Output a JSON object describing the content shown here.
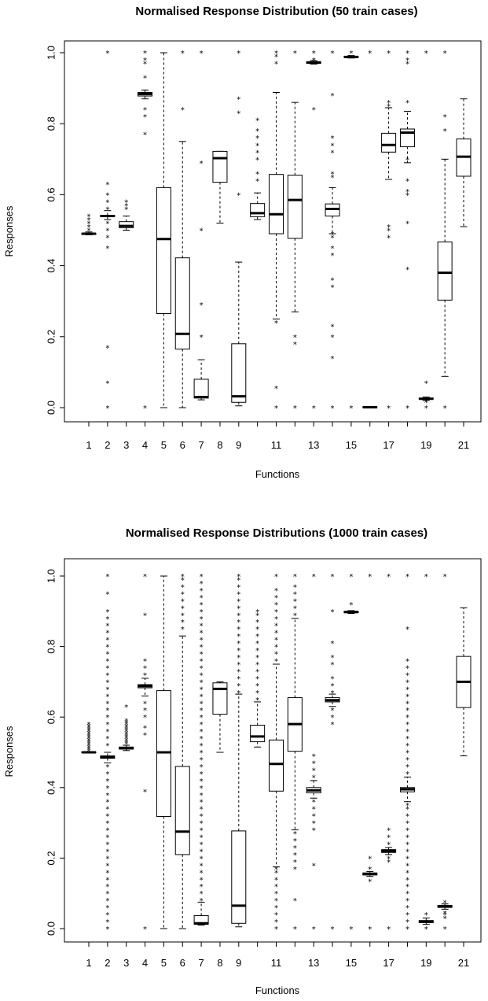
{
  "charts": [
    {
      "type": "box",
      "title": "Normalised Response Distribution (50 train cases)",
      "xlabel": "Functions",
      "ylabel": "Responses",
      "ylim": [
        0,
        1
      ],
      "y_ticks": [
        "0.0",
        "0.2",
        "0.4",
        "0.6",
        "0.8",
        "1.0"
      ],
      "x_tick_labels": [
        {
          "pos": 1,
          "label": "1"
        },
        {
          "pos": 2,
          "label": "2"
        },
        {
          "pos": 3,
          "label": "3"
        },
        {
          "pos": 4,
          "label": "4"
        },
        {
          "pos": 5,
          "label": "5"
        },
        {
          "pos": 6,
          "label": "6"
        },
        {
          "pos": 7,
          "label": "7"
        },
        {
          "pos": 8,
          "label": "8"
        },
        {
          "pos": 9,
          "label": "9"
        },
        {
          "pos": 11,
          "label": "11"
        },
        {
          "pos": 13,
          "label": "13"
        },
        {
          "pos": 15,
          "label": "15"
        },
        {
          "pos": 17,
          "label": "17"
        },
        {
          "pos": 19,
          "label": "19"
        },
        {
          "pos": 21,
          "label": "21"
        }
      ],
      "boxes": [
        {
          "f": 1,
          "lo": 0.487,
          "q1": 0.488,
          "med": 0.49,
          "q3": 0.491,
          "hi": 0.495,
          "out": [
            0.5,
            0.51,
            0.52,
            0.53,
            0.54
          ]
        },
        {
          "f": 2,
          "lo": 0.53,
          "q1": 0.538,
          "med": 0.54,
          "q3": 0.542,
          "hi": 0.555,
          "out": [
            0.0,
            0.07,
            0.17,
            0.45,
            0.48,
            0.5,
            0.52,
            0.56,
            0.58,
            0.6,
            0.63,
            1.0
          ]
        },
        {
          "f": 3,
          "lo": 0.5,
          "q1": 0.507,
          "med": 0.512,
          "q3": 0.524,
          "hi": 0.54,
          "out": [
            0.56,
            0.57,
            0.58
          ]
        },
        {
          "f": 4,
          "lo": 0.87,
          "q1": 0.878,
          "med": 0.884,
          "q3": 0.888,
          "hi": 0.895,
          "out": [
            0.0,
            0.77,
            0.82,
            0.84,
            0.93,
            0.97,
            0.98,
            1.0
          ]
        },
        {
          "f": 5,
          "lo": 0.0,
          "q1": 0.265,
          "med": 0.475,
          "q3": 0.62,
          "hi": 1.0,
          "out": []
        },
        {
          "f": 6,
          "lo": 0.0,
          "q1": 0.165,
          "med": 0.208,
          "q3": 0.422,
          "hi": 0.75,
          "out": [
            0.84,
            1.0
          ]
        },
        {
          "f": 7,
          "lo": 0.022,
          "q1": 0.027,
          "med": 0.03,
          "q3": 0.08,
          "hi": 0.135,
          "out": [
            0.2,
            0.29,
            0.5,
            0.69,
            1.0
          ]
        },
        {
          "f": 8,
          "lo": 0.52,
          "q1": 0.635,
          "med": 0.703,
          "q3": 0.722,
          "hi": 0.722,
          "out": []
        },
        {
          "f": 9,
          "lo": 0.005,
          "q1": 0.015,
          "med": 0.032,
          "q3": 0.18,
          "hi": 0.41,
          "out": [
            0.6,
            0.83,
            0.87,
            1.0
          ]
        },
        {
          "f": 10,
          "lo": 0.53,
          "q1": 0.538,
          "med": 0.548,
          "q3": 0.575,
          "hi": 0.605,
          "out": [
            0.64,
            0.66,
            0.7,
            0.72,
            0.74,
            0.76,
            0.78,
            0.81
          ]
        },
        {
          "f": 11,
          "lo": 0.25,
          "q1": 0.49,
          "med": 0.545,
          "q3": 0.657,
          "hi": 0.888,
          "out": [
            0.0,
            0.055,
            0.24,
            0.97,
            0.99,
            1.0
          ]
        },
        {
          "f": 12,
          "lo": 0.27,
          "q1": 0.477,
          "med": 0.585,
          "q3": 0.655,
          "hi": 0.86,
          "out": [
            0.0,
            0.18,
            0.2,
            1.0
          ]
        },
        {
          "f": 13,
          "lo": 0.968,
          "q1": 0.97,
          "med": 0.972,
          "q3": 0.975,
          "hi": 0.978,
          "out": [
            0.0,
            0.84,
            0.98,
            1.0
          ]
        },
        {
          "f": 14,
          "lo": 0.49,
          "q1": 0.54,
          "med": 0.56,
          "q3": 0.574,
          "hi": 0.62,
          "out": [
            0.0,
            0.14,
            0.2,
            0.23,
            0.34,
            0.36,
            0.43,
            0.45,
            0.48,
            0.49,
            0.65,
            0.66,
            0.72,
            0.74,
            0.76,
            0.88,
            1.0
          ]
        },
        {
          "f": 15,
          "lo": 0.985,
          "q1": 0.987,
          "med": 0.988,
          "q3": 0.99,
          "hi": 0.992,
          "out": [
            0.0,
            1.0
          ]
        },
        {
          "f": 16,
          "lo": 0.0,
          "q1": 0.0,
          "med": 0.001,
          "q3": 0.002,
          "hi": 0.003,
          "out": [
            1.0
          ]
        },
        {
          "f": 17,
          "lo": 0.643,
          "q1": 0.72,
          "med": 0.74,
          "q3": 0.773,
          "hi": 0.845,
          "out": [
            0.0,
            0.48,
            0.5,
            0.51,
            0.85,
            0.86,
            1.0
          ]
        },
        {
          "f": 18,
          "lo": 0.69,
          "q1": 0.735,
          "med": 0.775,
          "q3": 0.785,
          "hi": 0.835,
          "out": [
            0.0,
            0.39,
            0.52,
            0.6,
            0.61,
            0.64,
            0.7,
            0.86,
            0.97,
            0.98,
            1.0
          ]
        },
        {
          "f": 19,
          "lo": 0.02,
          "q1": 0.024,
          "med": 0.025,
          "q3": 0.027,
          "hi": 0.03,
          "out": [
            0.0,
            0.015,
            0.07,
            1.0
          ]
        },
        {
          "f": 20,
          "lo": 0.088,
          "q1": 0.303,
          "med": 0.38,
          "q3": 0.467,
          "hi": 0.7,
          "out": [
            0.0,
            0.78,
            0.82,
            1.0
          ]
        },
        {
          "f": 21,
          "lo": 0.51,
          "q1": 0.652,
          "med": 0.707,
          "q3": 0.757,
          "hi": 0.87,
          "out": []
        }
      ]
    },
    {
      "type": "box",
      "title": "Normalised Response Distributions (1000 train cases)",
      "xlabel": "Functions",
      "ylabel": "Responses",
      "ylim": [
        0,
        1
      ],
      "y_ticks": [
        "0.0",
        "0.2",
        "0.4",
        "0.6",
        "0.8",
        "1.0"
      ],
      "x_tick_labels": [
        {
          "pos": 1,
          "label": "1"
        },
        {
          "pos": 2,
          "label": "2"
        },
        {
          "pos": 3,
          "label": "3"
        },
        {
          "pos": 4,
          "label": "4"
        },
        {
          "pos": 5,
          "label": "5"
        },
        {
          "pos": 6,
          "label": "6"
        },
        {
          "pos": 7,
          "label": "7"
        },
        {
          "pos": 8,
          "label": "8"
        },
        {
          "pos": 9,
          "label": "9"
        },
        {
          "pos": 11,
          "label": "11"
        },
        {
          "pos": 13,
          "label": "13"
        },
        {
          "pos": 15,
          "label": "15"
        },
        {
          "pos": 17,
          "label": "17"
        },
        {
          "pos": 19,
          "label": "19"
        },
        {
          "pos": 21,
          "label": "21"
        }
      ],
      "boxes": [
        {
          "f": 1,
          "lo": 0.498,
          "q1": 0.499,
          "med": 0.5,
          "q3": 0.501,
          "hi": 0.502,
          "out": [
            0.505,
            0.51,
            0.515,
            0.52,
            0.525,
            0.53,
            0.535,
            0.54,
            0.545,
            0.55,
            0.555,
            0.56,
            0.565,
            0.57,
            0.575,
            0.58
          ]
        },
        {
          "f": 2,
          "lo": 0.47,
          "q1": 0.483,
          "med": 0.487,
          "q3": 0.49,
          "hi": 0.5,
          "out": [
            0.0,
            0.02,
            0.04,
            0.06,
            0.08,
            0.1,
            0.12,
            0.14,
            0.16,
            0.18,
            0.2,
            0.22,
            0.24,
            0.26,
            0.28,
            0.3,
            0.32,
            0.34,
            0.36,
            0.38,
            0.4,
            0.42,
            0.44,
            0.46,
            0.52,
            0.54,
            0.56,
            0.58,
            0.6,
            0.62,
            0.64,
            0.66,
            0.68,
            0.7,
            0.72,
            0.74,
            0.76,
            0.78,
            0.8,
            0.82,
            0.84,
            0.86,
            0.88,
            0.9,
            0.95,
            1.0
          ]
        },
        {
          "f": 3,
          "lo": 0.505,
          "q1": 0.509,
          "med": 0.512,
          "q3": 0.515,
          "hi": 0.52,
          "out": [
            0.525,
            0.53,
            0.535,
            0.54,
            0.545,
            0.55,
            0.555,
            0.56,
            0.565,
            0.57,
            0.575,
            0.58,
            0.585,
            0.59,
            0.63
          ]
        },
        {
          "f": 4,
          "lo": 0.66,
          "q1": 0.683,
          "med": 0.688,
          "q3": 0.692,
          "hi": 0.71,
          "out": [
            0.0,
            0.39,
            0.55,
            0.57,
            0.6,
            0.62,
            0.64,
            0.72,
            0.74,
            0.76,
            0.89,
            1.0
          ]
        },
        {
          "f": 5,
          "lo": 0.0,
          "q1": 0.318,
          "med": 0.5,
          "q3": 0.675,
          "hi": 1.0,
          "out": []
        },
        {
          "f": 6,
          "lo": 0.0,
          "q1": 0.21,
          "med": 0.275,
          "q3": 0.46,
          "hi": 0.83,
          "out": [
            0.85,
            0.87,
            0.89,
            0.91,
            0.93,
            0.95,
            0.97,
            0.99,
            1.0
          ]
        },
        {
          "f": 7,
          "lo": 0.01,
          "q1": 0.012,
          "med": 0.015,
          "q3": 0.037,
          "hi": 0.075,
          "out": [
            0.08,
            0.1,
            0.12,
            0.14,
            0.16,
            0.18,
            0.2,
            0.22,
            0.24,
            0.26,
            0.28,
            0.3,
            0.32,
            0.34,
            0.36,
            0.38,
            0.4,
            0.42,
            0.44,
            0.46,
            0.48,
            0.5,
            0.52,
            0.54,
            0.56,
            0.58,
            0.6,
            0.62,
            0.64,
            0.66,
            0.68,
            0.7,
            0.72,
            0.74,
            0.76,
            0.78,
            0.8,
            0.82,
            0.84,
            0.86,
            0.88,
            0.9,
            0.92,
            0.94,
            0.96,
            0.98,
            1.0
          ]
        },
        {
          "f": 8,
          "lo": 0.5,
          "q1": 0.608,
          "med": 0.68,
          "q3": 0.697,
          "hi": 0.7,
          "out": []
        },
        {
          "f": 9,
          "lo": 0.005,
          "q1": 0.015,
          "med": 0.065,
          "q3": 0.277,
          "hi": 0.665,
          "out": [
            0.67,
            0.69,
            0.71,
            0.73,
            0.75,
            0.77,
            0.79,
            0.81,
            0.83,
            0.85,
            0.87,
            0.89,
            0.91,
            0.93,
            0.95,
            0.97,
            0.99,
            1.0
          ]
        },
        {
          "f": 10,
          "lo": 0.515,
          "q1": 0.53,
          "med": 0.545,
          "q3": 0.577,
          "hi": 0.643,
          "out": [
            0.65,
            0.67,
            0.69,
            0.71,
            0.73,
            0.75,
            0.77,
            0.79,
            0.81,
            0.83,
            0.85,
            0.87,
            0.89,
            0.9
          ]
        },
        {
          "f": 11,
          "lo": 0.175,
          "q1": 0.39,
          "med": 0.467,
          "q3": 0.535,
          "hi": 0.75,
          "out": [
            0.0,
            0.02,
            0.04,
            0.06,
            0.08,
            0.1,
            0.12,
            0.14,
            0.16,
            0.17,
            0.76,
            0.78,
            0.8,
            0.82,
            0.84,
            0.86,
            0.88,
            0.9,
            0.92,
            0.94,
            0.96,
            1.0
          ]
        },
        {
          "f": 12,
          "lo": 0.28,
          "q1": 0.503,
          "med": 0.58,
          "q3": 0.655,
          "hi": 0.88,
          "out": [
            0.0,
            0.08,
            0.17,
            0.19,
            0.21,
            0.23,
            0.25,
            0.27,
            0.89,
            0.91,
            0.93,
            0.95,
            0.97,
            1.0
          ]
        },
        {
          "f": 13,
          "lo": 0.37,
          "q1": 0.385,
          "med": 0.392,
          "q3": 0.4,
          "hi": 0.42,
          "out": [
            0.0,
            0.18,
            0.28,
            0.3,
            0.32,
            0.34,
            0.36,
            0.43,
            0.45,
            0.47,
            0.49,
            1.0
          ]
        },
        {
          "f": 14,
          "lo": 0.63,
          "q1": 0.643,
          "med": 0.648,
          "q3": 0.655,
          "hi": 0.665,
          "out": [
            0.0,
            0.58,
            0.6,
            0.62,
            0.67,
            0.69,
            0.71,
            0.75,
            0.77,
            0.81,
            0.9,
            1.0
          ]
        },
        {
          "f": 15,
          "lo": 0.894,
          "q1": 0.896,
          "med": 0.898,
          "q3": 0.9,
          "hi": 0.902,
          "out": [
            0.0,
            0.92,
            1.0
          ]
        },
        {
          "f": 16,
          "lo": 0.148,
          "q1": 0.152,
          "med": 0.155,
          "q3": 0.158,
          "hi": 0.162,
          "out": [
            0.0,
            0.135,
            0.17,
            0.2,
            1.0
          ]
        },
        {
          "f": 17,
          "lo": 0.21,
          "q1": 0.216,
          "med": 0.22,
          "q3": 0.224,
          "hi": 0.23,
          "out": [
            0.0,
            0.19,
            0.2,
            0.24,
            0.26,
            0.28,
            1.0
          ]
        },
        {
          "f": 18,
          "lo": 0.36,
          "q1": 0.388,
          "med": 0.395,
          "q3": 0.4,
          "hi": 0.43,
          "out": [
            0.0,
            0.02,
            0.04,
            0.06,
            0.08,
            0.1,
            0.12,
            0.14,
            0.16,
            0.18,
            0.2,
            0.22,
            0.24,
            0.26,
            0.28,
            0.3,
            0.32,
            0.34,
            0.35,
            0.44,
            0.46,
            0.48,
            0.5,
            0.52,
            0.54,
            0.56,
            0.58,
            0.6,
            0.62,
            0.64,
            0.66,
            0.68,
            0.7,
            0.72,
            0.74,
            0.76,
            0.85,
            1.0
          ]
        },
        {
          "f": 19,
          "lo": 0.012,
          "q1": 0.017,
          "med": 0.02,
          "q3": 0.023,
          "hi": 0.03,
          "out": [
            0.0,
            0.04,
            1.0
          ]
        },
        {
          "f": 20,
          "lo": 0.055,
          "q1": 0.06,
          "med": 0.063,
          "q3": 0.066,
          "hi": 0.07,
          "out": [
            0.0,
            0.03,
            0.04,
            0.045,
            0.075,
            1.0
          ]
        },
        {
          "f": 21,
          "lo": 0.49,
          "q1": 0.627,
          "med": 0.7,
          "q3": 0.772,
          "hi": 0.91,
          "out": []
        }
      ]
    }
  ]
}
